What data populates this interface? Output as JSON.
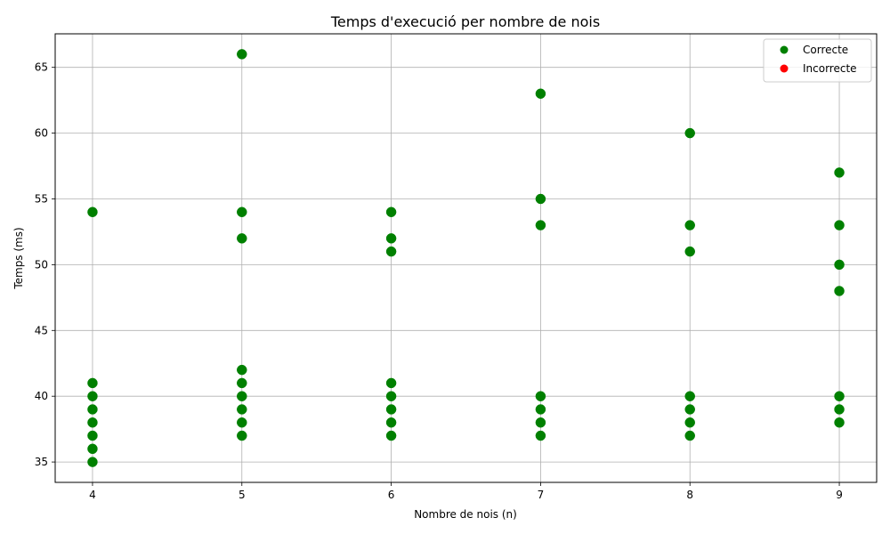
{
  "chart_data": {
    "type": "scatter",
    "title": "Temps d'execució per nombre de nois",
    "xlabel": "Nombre de nois (n)",
    "ylabel": "Temps (ms)",
    "xlim": [
      3.75,
      9.25
    ],
    "ylim": [
      33.45,
      67.55
    ],
    "xticks": [
      4,
      5,
      6,
      7,
      8,
      9
    ],
    "yticks": [
      35,
      40,
      45,
      50,
      55,
      60,
      65
    ],
    "grid": true,
    "legend_position": "top-right",
    "legend": [
      {
        "label": "Correcte",
        "color": "#008000"
      },
      {
        "label": "Incorrecte",
        "color": "#ff0000"
      }
    ],
    "series": [
      {
        "name": "Correcte",
        "color": "#008000",
        "points": [
          [
            4,
            54
          ],
          [
            4,
            41
          ],
          [
            4,
            40
          ],
          [
            4,
            39
          ],
          [
            4,
            38
          ],
          [
            4,
            37
          ],
          [
            4,
            36
          ],
          [
            4,
            35
          ],
          [
            5,
            66
          ],
          [
            5,
            54
          ],
          [
            5,
            52
          ],
          [
            5,
            42
          ],
          [
            5,
            41
          ],
          [
            5,
            40
          ],
          [
            5,
            39
          ],
          [
            5,
            38
          ],
          [
            5,
            37
          ],
          [
            6,
            54
          ],
          [
            6,
            52
          ],
          [
            6,
            51
          ],
          [
            6,
            41
          ],
          [
            6,
            40
          ],
          [
            6,
            39
          ],
          [
            6,
            38
          ],
          [
            6,
            37
          ],
          [
            7,
            63
          ],
          [
            7,
            55
          ],
          [
            7,
            53
          ],
          [
            7,
            40
          ],
          [
            7,
            39
          ],
          [
            7,
            38
          ],
          [
            7,
            37
          ],
          [
            8,
            60
          ],
          [
            8,
            53
          ],
          [
            8,
            51
          ],
          [
            8,
            40
          ],
          [
            8,
            39
          ],
          [
            8,
            38
          ],
          [
            8,
            37
          ],
          [
            9,
            57
          ],
          [
            9,
            53
          ],
          [
            9,
            50
          ],
          [
            9,
            48
          ],
          [
            9,
            40
          ],
          [
            9,
            39
          ],
          [
            9,
            38
          ]
        ]
      },
      {
        "name": "Incorrecte",
        "color": "#ff0000",
        "points": []
      }
    ]
  }
}
